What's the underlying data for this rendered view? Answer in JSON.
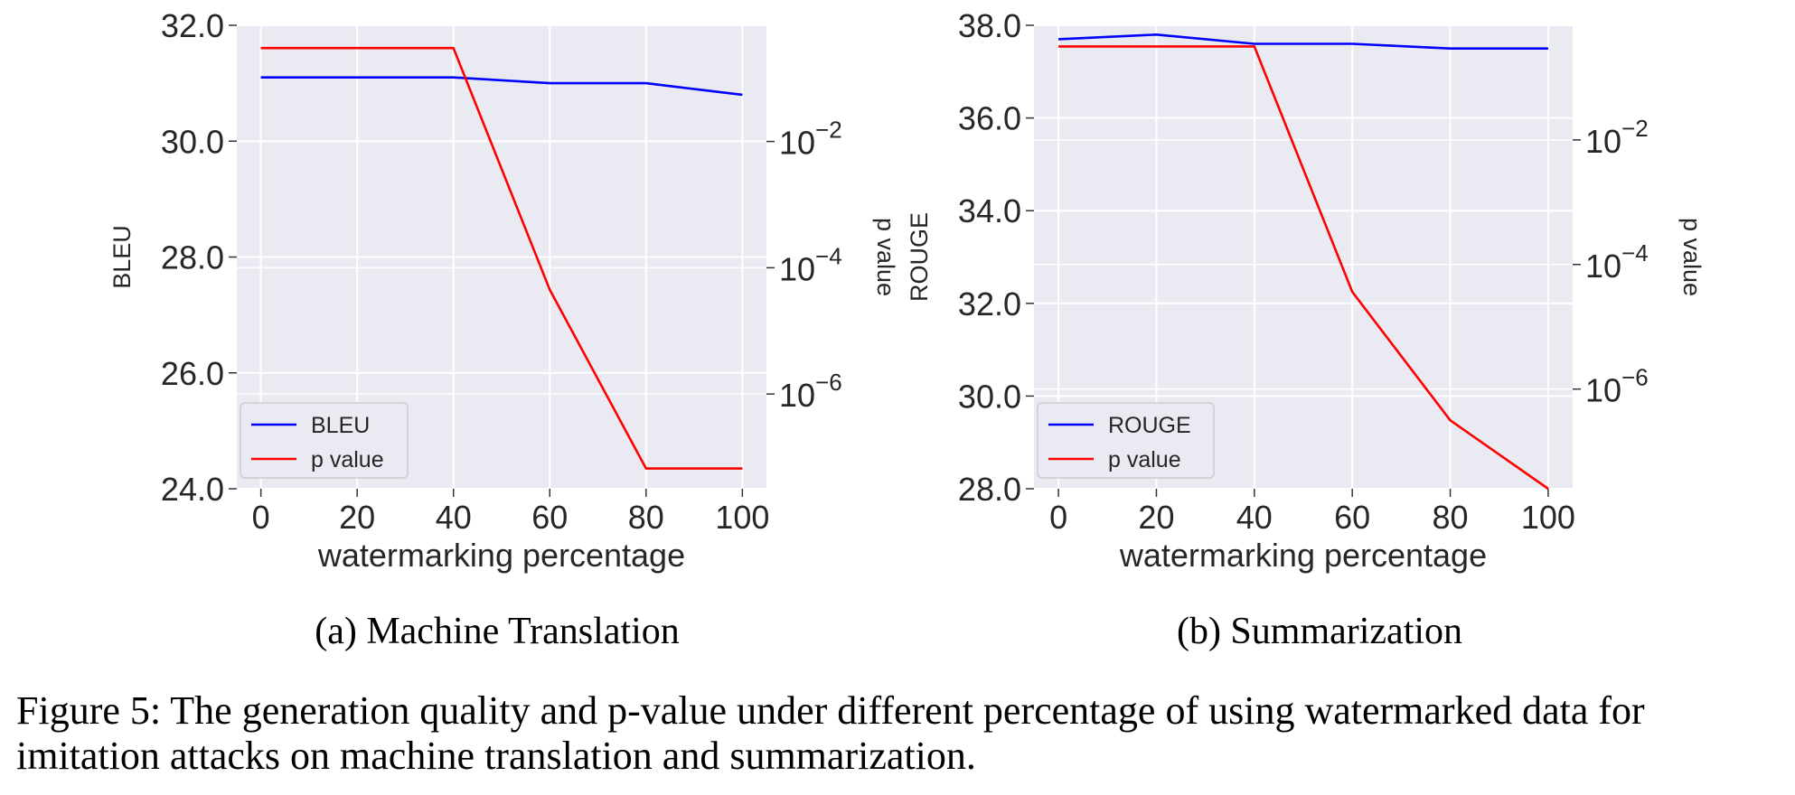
{
  "chart_data": [
    {
      "type": "line",
      "subtitle": "(a) Machine Translation",
      "xlabel": "watermarking percentage",
      "ylabel": "BLEU",
      "ylabel_right": "p value",
      "x": [
        0,
        20,
        40,
        60,
        80,
        100
      ],
      "xticks": [
        "0",
        "20",
        "40",
        "60",
        "80",
        "100"
      ],
      "xlim": [
        -5,
        105
      ],
      "ylim": [
        24.0,
        32.0
      ],
      "yticks": [
        "24.0",
        "26.0",
        "28.0",
        "30.0",
        "32.0"
      ],
      "y2_scale": "log",
      "y2lim_exp": [
        -7.5,
        -0.16
      ],
      "y2ticks": [
        {
          "base": "10",
          "exp": "−2",
          "value": -2
        },
        {
          "base": "10",
          "exp": "−4",
          "value": -4
        },
        {
          "base": "10",
          "exp": "−6",
          "value": -6
        }
      ],
      "grid": true,
      "legend_position": "lower-left",
      "series": [
        {
          "name": "BLEU",
          "axis": "left",
          "color": "#0000ff",
          "values": [
            31.1,
            31.1,
            31.1,
            31.0,
            31.0,
            30.8
          ]
        },
        {
          "name": "p value",
          "axis": "right",
          "color": "#ff0000",
          "log10_values": [
            -0.52,
            -0.52,
            -0.52,
            -4.35,
            -7.18,
            -7.18
          ]
        }
      ]
    },
    {
      "type": "line",
      "subtitle": "(b) Summarization",
      "xlabel": "watermarking percentage",
      "ylabel": "ROUGE",
      "ylabel_right": "p value",
      "x": [
        0,
        20,
        40,
        60,
        80,
        100
      ],
      "xticks": [
        "0",
        "20",
        "40",
        "60",
        "80",
        "100"
      ],
      "xlim": [
        -5,
        105
      ],
      "ylim": [
        28.0,
        38.0
      ],
      "yticks": [
        "28.0",
        "30.0",
        "32.0",
        "34.0",
        "36.0",
        "38.0"
      ],
      "y2_scale": "log",
      "y2lim_exp": [
        -7.6,
        -0.16
      ],
      "y2ticks": [
        {
          "base": "10",
          "exp": "−2",
          "value": -2
        },
        {
          "base": "10",
          "exp": "−4",
          "value": -4
        },
        {
          "base": "10",
          "exp": "−6",
          "value": -6
        }
      ],
      "grid": true,
      "legend_position": "lower-left",
      "series": [
        {
          "name": "ROUGE",
          "axis": "left",
          "color": "#0000ff",
          "values": [
            37.7,
            37.8,
            37.6,
            37.6,
            37.5,
            37.5
          ]
        },
        {
          "name": "p value",
          "axis": "right",
          "color": "#ff0000",
          "log10_values": [
            -0.5,
            -0.5,
            -0.5,
            -4.44,
            -6.5,
            -7.6
          ]
        }
      ]
    }
  ],
  "figure_caption": "Figure 5: The generation quality and p-value under different percentage of using watermarked data for imitation attacks on machine translation and summarization."
}
